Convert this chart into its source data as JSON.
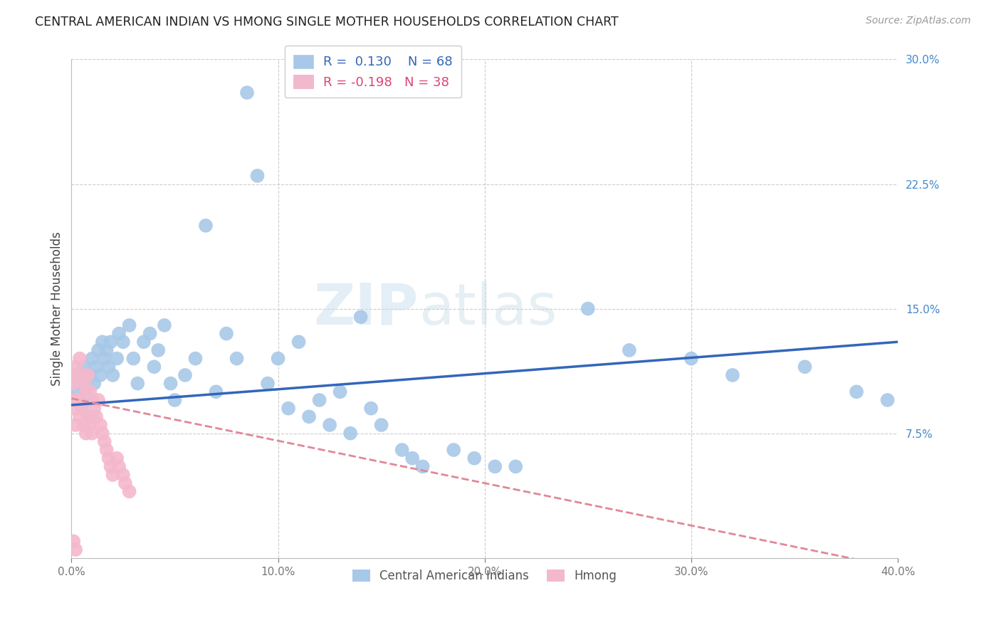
{
  "title": "CENTRAL AMERICAN INDIAN VS HMONG SINGLE MOTHER HOUSEHOLDS CORRELATION CHART",
  "source": "Source: ZipAtlas.com",
  "ylabel": "Single Mother Households",
  "xlabel": "",
  "xlim": [
    0.0,
    0.4
  ],
  "ylim": [
    0.0,
    0.3
  ],
  "xticks": [
    0.0,
    0.1,
    0.2,
    0.3,
    0.4
  ],
  "xticklabels": [
    "0.0%",
    "10.0%",
    "20.0%",
    "30.0%",
    "40.0%"
  ],
  "yticks_right": [
    0.075,
    0.15,
    0.225,
    0.3
  ],
  "yticklabels_right": [
    "7.5%",
    "15.0%",
    "22.5%",
    "30.0%"
  ],
  "legend_blue_r": "R =  0.130",
  "legend_blue_n": "N = 68",
  "legend_pink_r": "R = -0.198",
  "legend_pink_n": "N = 38",
  "label_blue": "Central American Indians",
  "label_pink": "Hmong",
  "color_blue": "#a8c8e8",
  "color_pink": "#f4b8cc",
  "line_blue": "#3366bb",
  "line_pink": "#e08898",
  "watermark_zip": "ZIP",
  "watermark_atlas": "atlas",
  "blue_x": [
    0.001,
    0.002,
    0.003,
    0.004,
    0.005,
    0.006,
    0.007,
    0.008,
    0.009,
    0.01,
    0.011,
    0.012,
    0.013,
    0.014,
    0.015,
    0.016,
    0.017,
    0.018,
    0.019,
    0.02,
    0.022,
    0.023,
    0.025,
    0.028,
    0.03,
    0.032,
    0.035,
    0.038,
    0.04,
    0.042,
    0.045,
    0.048,
    0.05,
    0.055,
    0.06,
    0.065,
    0.07,
    0.075,
    0.08,
    0.085,
    0.09,
    0.095,
    0.1,
    0.105,
    0.11,
    0.115,
    0.12,
    0.125,
    0.13,
    0.135,
    0.14,
    0.145,
    0.15,
    0.16,
    0.165,
    0.17,
    0.185,
    0.195,
    0.205,
    0.215,
    0.25,
    0.27,
    0.3,
    0.32,
    0.355,
    0.38,
    0.395,
    0.01
  ],
  "blue_y": [
    0.095,
    0.11,
    0.1,
    0.105,
    0.09,
    0.115,
    0.1,
    0.095,
    0.11,
    0.12,
    0.105,
    0.115,
    0.125,
    0.11,
    0.13,
    0.12,
    0.125,
    0.115,
    0.13,
    0.11,
    0.12,
    0.135,
    0.13,
    0.14,
    0.12,
    0.105,
    0.13,
    0.135,
    0.115,
    0.125,
    0.14,
    0.105,
    0.095,
    0.11,
    0.12,
    0.2,
    0.1,
    0.135,
    0.12,
    0.28,
    0.23,
    0.105,
    0.12,
    0.09,
    0.13,
    0.085,
    0.095,
    0.08,
    0.1,
    0.075,
    0.145,
    0.09,
    0.08,
    0.065,
    0.06,
    0.055,
    0.065,
    0.06,
    0.055,
    0.055,
    0.15,
    0.125,
    0.12,
    0.11,
    0.115,
    0.1,
    0.095,
    0.085
  ],
  "pink_x": [
    0.001,
    0.001,
    0.002,
    0.002,
    0.002,
    0.003,
    0.003,
    0.004,
    0.004,
    0.005,
    0.005,
    0.006,
    0.006,
    0.007,
    0.007,
    0.008,
    0.008,
    0.009,
    0.009,
    0.01,
    0.01,
    0.011,
    0.012,
    0.013,
    0.014,
    0.015,
    0.016,
    0.017,
    0.018,
    0.019,
    0.02,
    0.022,
    0.023,
    0.025,
    0.026,
    0.028,
    0.001,
    0.002
  ],
  "pink_y": [
    0.105,
    0.09,
    0.115,
    0.095,
    0.08,
    0.11,
    0.095,
    0.12,
    0.085,
    0.11,
    0.09,
    0.105,
    0.08,
    0.1,
    0.075,
    0.11,
    0.085,
    0.1,
    0.08,
    0.095,
    0.075,
    0.09,
    0.085,
    0.095,
    0.08,
    0.075,
    0.07,
    0.065,
    0.06,
    0.055,
    0.05,
    0.06,
    0.055,
    0.05,
    0.045,
    0.04,
    0.01,
    0.005
  ],
  "blue_trend_x": [
    0.0,
    0.4
  ],
  "blue_trend_y": [
    0.092,
    0.13
  ],
  "pink_trend_x": [
    0.0,
    0.4
  ],
  "pink_trend_y": [
    0.096,
    -0.006
  ]
}
